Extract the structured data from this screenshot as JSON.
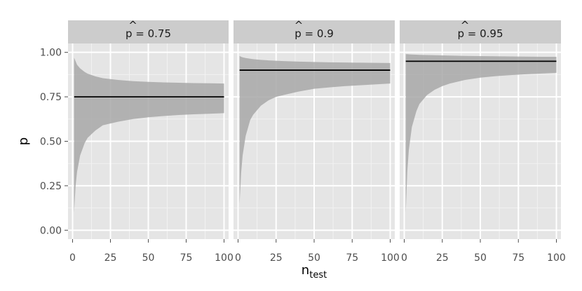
{
  "chart_data": {
    "type": "area",
    "xlabel": "n",
    "xlabel_subscript": "test",
    "ylabel": "p",
    "xlim": [
      -3,
      103
    ],
    "ylim": [
      -0.05,
      1.05
    ],
    "x_ticks": [
      0,
      25,
      50,
      75,
      100
    ],
    "x_tick_labels": [
      "0",
      "25",
      "50",
      "75",
      "100"
    ],
    "y_ticks": [
      0.0,
      0.25,
      0.5,
      0.75,
      1.0
    ],
    "y_tick_labels": [
      "0.00",
      "0.25",
      "0.50",
      "0.75",
      "1.00"
    ],
    "grid": true,
    "panel_background": "#e5e5e5",
    "strip_background": "#cccccc",
    "band_color": "#a8a8a8",
    "line_color": "#000000",
    "facets": [
      {
        "strip_label": "p̂ = 0.75",
        "strip_symbol": "p",
        "strip_value": "= 0.75",
        "p_hat": 0.75,
        "x": [
          1,
          2,
          3,
          5,
          8,
          10,
          15,
          20,
          25,
          30,
          40,
          50,
          60,
          70,
          80,
          90,
          100
        ],
        "lower": [
          0.1,
          0.25,
          0.33,
          0.42,
          0.49,
          0.52,
          0.56,
          0.59,
          0.6,
          0.61,
          0.625,
          0.635,
          0.642,
          0.648,
          0.652,
          0.655,
          0.658
        ],
        "upper": [
          0.97,
          0.95,
          0.93,
          0.91,
          0.89,
          0.88,
          0.865,
          0.855,
          0.85,
          0.845,
          0.838,
          0.834,
          0.831,
          0.829,
          0.827,
          0.826,
          0.825
        ]
      },
      {
        "strip_label": "p̂ = 0.9",
        "strip_symbol": "p",
        "strip_value": "= 0.9",
        "p_hat": 0.9,
        "x": [
          1,
          2,
          3,
          5,
          8,
          10,
          15,
          20,
          25,
          30,
          40,
          50,
          60,
          70,
          80,
          90,
          100
        ],
        "lower": [
          0.15,
          0.32,
          0.42,
          0.53,
          0.62,
          0.65,
          0.7,
          0.73,
          0.75,
          0.76,
          0.78,
          0.795,
          0.803,
          0.81,
          0.815,
          0.82,
          0.825
        ],
        "upper": [
          0.98,
          0.975,
          0.972,
          0.968,
          0.964,
          0.962,
          0.958,
          0.955,
          0.953,
          0.951,
          0.948,
          0.946,
          0.944,
          0.943,
          0.942,
          0.941,
          0.94
        ]
      },
      {
        "strip_label": "p̂ = 0.95",
        "strip_symbol": "p",
        "strip_value": "= 0.95",
        "p_hat": 0.95,
        "x": [
          1,
          2,
          3,
          5,
          8,
          10,
          15,
          20,
          25,
          30,
          40,
          50,
          60,
          70,
          80,
          90,
          100
        ],
        "lower": [
          0.1,
          0.33,
          0.45,
          0.58,
          0.67,
          0.71,
          0.76,
          0.79,
          0.81,
          0.825,
          0.845,
          0.858,
          0.866,
          0.872,
          0.877,
          0.881,
          0.885
        ],
        "upper": [
          0.99,
          0.99,
          0.989,
          0.988,
          0.987,
          0.986,
          0.985,
          0.984,
          0.983,
          0.982,
          0.98,
          0.979,
          0.978,
          0.977,
          0.976,
          0.975,
          0.975
        ]
      }
    ]
  }
}
